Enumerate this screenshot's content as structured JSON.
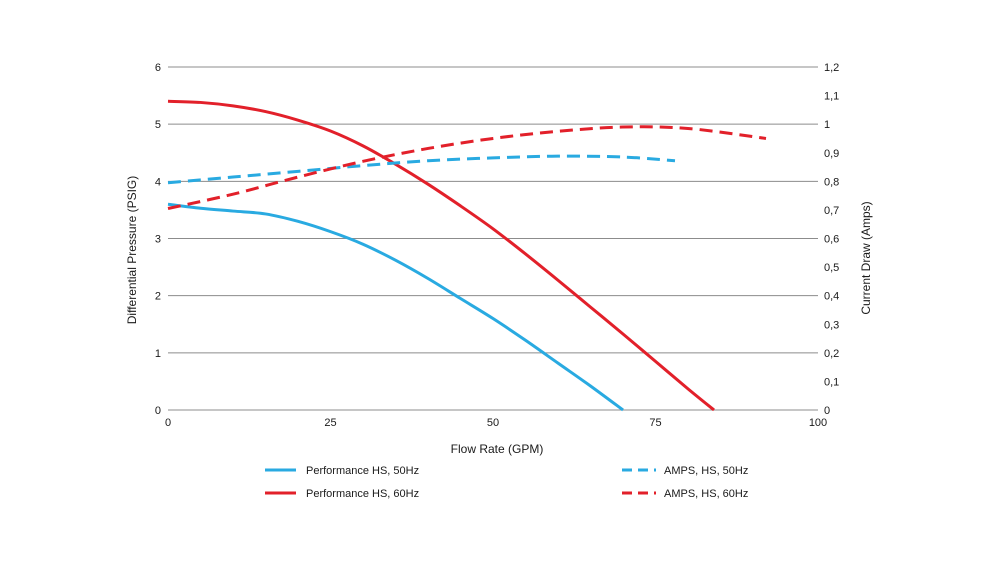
{
  "chart_data": {
    "type": "line",
    "xlabel": "Flow Rate (GPM)",
    "ylabel": "Differential Pressure (PSIG)",
    "y2label": "Current Draw (Amps)",
    "xlim": [
      0,
      100
    ],
    "ylim": [
      0,
      6
    ],
    "y2lim": [
      0,
      1.2
    ],
    "x_ticks": [
      "0",
      "25",
      "50",
      "75",
      "100"
    ],
    "y_ticks": [
      "0",
      "1",
      "2",
      "3",
      "4",
      "5",
      "6"
    ],
    "y2_ticks": [
      "0",
      "0,1",
      "0,2",
      "0,3",
      "0,4",
      "0,5",
      "0,6",
      "0,7",
      "0,8",
      "0,9",
      "1",
      "1,1",
      "1,2"
    ],
    "grid": "horizontal",
    "legend_position": "bottom",
    "series": [
      {
        "name": "Performance HS, 50Hz",
        "axis": "left",
        "color": "#29aae1",
        "style": "solid",
        "x": [
          0,
          5,
          10,
          15,
          20,
          25,
          30,
          35,
          40,
          45,
          50,
          55,
          60,
          65,
          70
        ],
        "y": [
          3.6,
          3.53,
          3.48,
          3.43,
          3.3,
          3.12,
          2.9,
          2.62,
          2.3,
          1.95,
          1.6,
          1.22,
          0.82,
          0.42,
          0.0
        ]
      },
      {
        "name": "Performance HS, 60Hz",
        "axis": "left",
        "color": "#e2202a",
        "style": "solid",
        "x": [
          0,
          5,
          10,
          15,
          20,
          25,
          30,
          35,
          40,
          45,
          50,
          55,
          60,
          65,
          70,
          75,
          80,
          84
        ],
        "y": [
          5.4,
          5.38,
          5.32,
          5.22,
          5.07,
          4.88,
          4.62,
          4.3,
          3.95,
          3.57,
          3.17,
          2.73,
          2.27,
          1.8,
          1.33,
          0.85,
          0.37,
          0.0
        ]
      },
      {
        "name": "AMPS, HS, 50Hz",
        "axis": "right",
        "color": "#29aae1",
        "style": "dashed",
        "x": [
          0,
          10,
          20,
          30,
          40,
          50,
          60,
          70,
          78
        ],
        "y": [
          0.795,
          0.815,
          0.835,
          0.855,
          0.872,
          0.882,
          0.888,
          0.885,
          0.872
        ]
      },
      {
        "name": "AMPS, HS, 60Hz",
        "axis": "right",
        "color": "#e2202a",
        "style": "dashed",
        "x": [
          0,
          10,
          20,
          30,
          40,
          50,
          60,
          70,
          80,
          92
        ],
        "y": [
          0.705,
          0.755,
          0.815,
          0.87,
          0.915,
          0.95,
          0.975,
          0.99,
          0.985,
          0.95
        ]
      }
    ]
  }
}
